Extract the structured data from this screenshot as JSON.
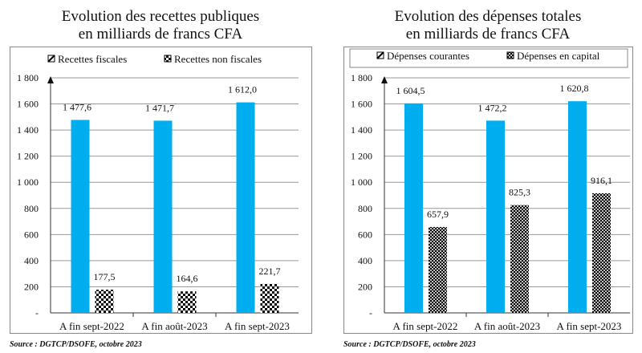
{
  "chart_data": [
    {
      "type": "bar",
      "title_line1": "Evolution des recettes publiques",
      "title_line2": "en milliards de francs CFA",
      "categories": [
        "A fin sept-2022",
        "A fin août-2023",
        "A fin sept-2023"
      ],
      "series": [
        {
          "name": "Recettes fiscales",
          "values": [
            1477.6,
            1471.7,
            1612.0
          ],
          "labels": [
            "1 477,6",
            "1 471,7",
            "1 612,0"
          ],
          "color": "#00AEEF",
          "pattern": "solid"
        },
        {
          "name": "Recettes non fiscales",
          "values": [
            177.5,
            164.6,
            221.7
          ],
          "labels": [
            "177,5",
            "164,6",
            "221,7"
          ],
          "color": "#000000",
          "pattern": "checker"
        }
      ],
      "ylim": [
        0,
        1800
      ],
      "yticks": [
        0,
        200,
        400,
        600,
        800,
        1000,
        1200,
        1400,
        1600,
        1800
      ],
      "ytick_labels": [
        "-",
        "200",
        "400",
        "600",
        "800",
        "1 000",
        "1 200",
        "1 400",
        "1 600",
        "1 800"
      ],
      "grid": true,
      "legend": "top",
      "source": "Source : DGTCP/DSOFE, octobre 2023"
    },
    {
      "type": "bar",
      "title_line1": "Evolution des dépenses totales",
      "title_line2": "en milliards de francs CFA",
      "categories": [
        "A fin sept-2022",
        "A fin août-2023",
        "A fin sept-2023"
      ],
      "series": [
        {
          "name": "Dépenses courantes",
          "values": [
            1604.5,
            1472.2,
            1620.8
          ],
          "labels": [
            "1 604,5",
            "1 472,2",
            "1 620,8"
          ],
          "color": "#00AEEF",
          "pattern": "solid"
        },
        {
          "name": "Dépenses en capital",
          "values": [
            657.9,
            825.3,
            916.1
          ],
          "labels": [
            "657,9",
            "825,3",
            "916,1"
          ],
          "color": "#000000",
          "pattern": "dots"
        }
      ],
      "ylim": [
        0,
        1800
      ],
      "yticks": [
        0,
        200,
        400,
        600,
        800,
        1000,
        1200,
        1400,
        1600,
        1800
      ],
      "ytick_labels": [
        "-",
        "200",
        "400",
        "600",
        "800",
        "1 000",
        "1 200",
        "1 400",
        "1 600",
        "1 800"
      ],
      "grid": true,
      "legend": "top",
      "source": "Source : DGTCP/DSOFE, octobre 2023"
    }
  ]
}
